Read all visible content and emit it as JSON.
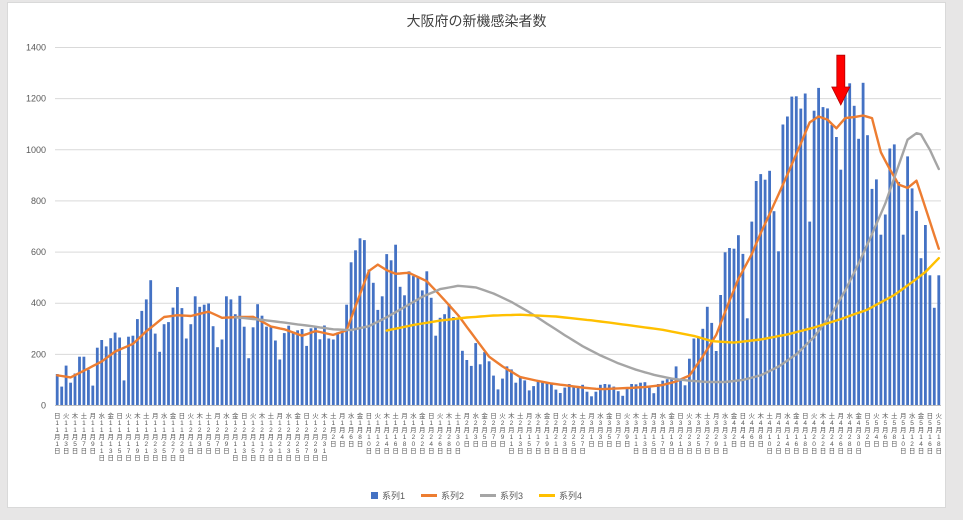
{
  "page": {
    "background": "#e7e6e6",
    "chart_background": "#ffffff",
    "chart_border": "#d9d9d9"
  },
  "chart_data": {
    "type": "combo",
    "title": "大阪府の新機感染者数",
    "title_color": "#404040",
    "ylim": [
      0,
      1400
    ],
    "y_ticks": [
      0,
      200,
      400,
      600,
      800,
      1000,
      1200,
      1400
    ],
    "grid": true,
    "grid_color": "#d9d9d9",
    "axis_text_color": "#595959",
    "legend_position": "bottom",
    "x_axis": {
      "description": "daily dates, tick label every 2 days, vertical text of weekday + M月D日",
      "start_label": "日11月1日",
      "end_label": "火5月18日",
      "tick_interval_days": 2,
      "dow_cycle": [
        "日",
        "火",
        "木",
        "土",
        "月",
        "水",
        "金"
      ],
      "months": [
        [
          11,
          30
        ],
        [
          12,
          31
        ],
        [
          1,
          31
        ],
        [
          2,
          28
        ],
        [
          3,
          31
        ],
        [
          4,
          30
        ],
        [
          5,
          18
        ]
      ]
    },
    "point_format_for_lines": "[day_index_from_first_bar, value]",
    "series": [
      {
        "name": "系列1",
        "type": "bar",
        "color": "#4472c4",
        "values": [
          123,
          74,
          156,
          89,
          125,
          191,
          191,
          140,
          78,
          226,
          256,
          231,
          263,
          285,
          266,
          98,
          269,
          273,
          338,
          370,
          415,
          490,
          281,
          210,
          318,
          326,
          383,
          463,
          381,
          262,
          318,
          427,
          386,
          394,
          399,
          310,
          228,
          258,
          427,
          415,
          357,
          429,
          308,
          185,
          306,
          396,
          351,
          308,
          311,
          254,
          180,
          283,
          312,
          289,
          294,
          299,
          233,
          302,
          307,
          259,
          313,
          262,
          258,
          286,
          286,
          394,
          560,
          607,
          654,
          647,
          532,
          480,
          374,
          427,
          592,
          568,
          629,
          464,
          431,
          525,
          506,
          501,
          450,
          525,
          421,
          273,
          343,
          357,
          397,
          346,
          338,
          214,
          178,
          155,
          244,
          161,
          209,
          173,
          117,
          63,
          105,
          153,
          141,
          89,
          112,
          98,
          59,
          76,
          100,
          91,
          91,
          90,
          62,
          49,
          70,
          84,
          72,
          69,
          81,
          54,
          36,
          54,
          81,
          84,
          82,
          74,
          56,
          38,
          66,
          84,
          83,
          89,
          91,
          70,
          48,
          84,
          97,
          103,
          105,
          153,
          100,
          79,
          183,
          262,
          266,
          300,
          386,
          323,
          213,
          432,
          599,
          616,
          613,
          666,
          593,
          341,
          719,
          878,
          905,
          883,
          918,
          760,
          603,
          1099,
          1130,
          1208,
          1209,
          1161,
          1220,
          719,
          1153,
          1242,
          1167,
          1162,
          1097,
          1050,
          922,
          1230,
          1260,
          1172,
          1043,
          1262,
          1057,
          847,
          884,
          668,
          747,
          1005,
          1021,
          874,
          668,
          974,
          849,
          761,
          576,
          706,
          509,
          382,
          509
        ]
      },
      {
        "name": "系列2",
        "type": "line",
        "color": "#ed7d31",
        "points": [
          [
            0,
            118
          ],
          [
            3,
            110
          ],
          [
            6,
            136
          ],
          [
            10,
            172
          ],
          [
            13,
            211
          ],
          [
            17,
            241
          ],
          [
            20,
            290
          ],
          [
            24,
            346
          ],
          [
            27,
            353
          ],
          [
            30,
            350
          ],
          [
            34,
            367
          ],
          [
            37,
            343
          ],
          [
            41,
            346
          ],
          [
            44,
            347
          ],
          [
            48,
            309
          ],
          [
            51,
            298
          ],
          [
            55,
            273
          ],
          [
            58,
            291
          ],
          [
            62,
            276
          ],
          [
            65,
            294
          ],
          [
            68,
            435
          ],
          [
            70,
            526
          ],
          [
            72,
            551
          ],
          [
            74,
            529
          ],
          [
            76,
            515
          ],
          [
            79,
            519
          ],
          [
            83,
            486
          ],
          [
            86,
            431
          ],
          [
            90,
            354
          ],
          [
            93,
            284
          ],
          [
            97,
            191
          ],
          [
            100,
            153
          ],
          [
            104,
            111
          ],
          [
            108,
            96
          ],
          [
            111,
            86
          ],
          [
            115,
            77
          ],
          [
            118,
            70
          ],
          [
            122,
            64
          ],
          [
            125,
            66
          ],
          [
            129,
            69
          ],
          [
            132,
            72
          ],
          [
            136,
            80
          ],
          [
            139,
            94
          ],
          [
            142,
            117
          ],
          [
            145,
            192
          ],
          [
            148,
            276
          ],
          [
            151,
            410
          ],
          [
            153,
            495
          ],
          [
            156,
            592
          ],
          [
            158,
            674
          ],
          [
            160,
            748
          ],
          [
            163,
            864
          ],
          [
            165,
            943
          ],
          [
            167,
            1024
          ],
          [
            169,
            1107
          ],
          [
            171,
            1130
          ],
          [
            173,
            1118
          ],
          [
            175,
            1084
          ],
          [
            177,
            1124
          ],
          [
            179,
            1128
          ],
          [
            181,
            1134
          ],
          [
            183,
            1124
          ],
          [
            185,
            990
          ],
          [
            187,
            924
          ],
          [
            189,
            864
          ],
          [
            191,
            851
          ],
          [
            193,
            879
          ],
          [
            195,
            773
          ],
          [
            198,
            613
          ]
        ]
      },
      {
        "name": "系列3",
        "type": "line",
        "color": "#a5a5a5",
        "points": [
          [
            40,
            345
          ],
          [
            46,
            335
          ],
          [
            52,
            322
          ],
          [
            58,
            308
          ],
          [
            62,
            298
          ],
          [
            66,
            295
          ],
          [
            70,
            310
          ],
          [
            74,
            345
          ],
          [
            78,
            385
          ],
          [
            82,
            425
          ],
          [
            86,
            455
          ],
          [
            90,
            468
          ],
          [
            94,
            462
          ],
          [
            98,
            438
          ],
          [
            102,
            405
          ],
          [
            106,
            365
          ],
          [
            110,
            320
          ],
          [
            114,
            275
          ],
          [
            118,
            232
          ],
          [
            122,
            196
          ],
          [
            126,
            165
          ],
          [
            130,
            140
          ],
          [
            134,
            120
          ],
          [
            138,
            105
          ],
          [
            142,
            97
          ],
          [
            146,
            92
          ],
          [
            150,
            92
          ],
          [
            154,
            100
          ],
          [
            158,
            118
          ],
          [
            162,
            152
          ],
          [
            166,
            200
          ],
          [
            170,
            268
          ],
          [
            174,
            360
          ],
          [
            177,
            450
          ],
          [
            180,
            555
          ],
          [
            183,
            670
          ],
          [
            186,
            790
          ],
          [
            189,
            940
          ],
          [
            191,
            1040
          ],
          [
            193,
            1065
          ],
          [
            194,
            1060
          ],
          [
            196,
            1000
          ],
          [
            198,
            925
          ]
        ]
      },
      {
        "name": "系列4",
        "type": "line",
        "color": "#ffc000",
        "points": [
          [
            74,
            293
          ],
          [
            80,
            315
          ],
          [
            86,
            332
          ],
          [
            92,
            344
          ],
          [
            98,
            352
          ],
          [
            104,
            355
          ],
          [
            112,
            348
          ],
          [
            120,
            333
          ],
          [
            128,
            315
          ],
          [
            136,
            296
          ],
          [
            143,
            272
          ],
          [
            147,
            252
          ],
          [
            152,
            246
          ],
          [
            158,
            258
          ],
          [
            164,
            278
          ],
          [
            170,
            305
          ],
          [
            176,
            338
          ],
          [
            182,
            375
          ],
          [
            188,
            432
          ],
          [
            192,
            482
          ],
          [
            195,
            522
          ],
          [
            198,
            576
          ]
        ]
      }
    ],
    "annotation": {
      "shape": "block-arrow-down",
      "color": "#ff0000",
      "outline": "#b20000",
      "x_day": 176,
      "from_value": 1370,
      "to_value": 1175
    }
  }
}
